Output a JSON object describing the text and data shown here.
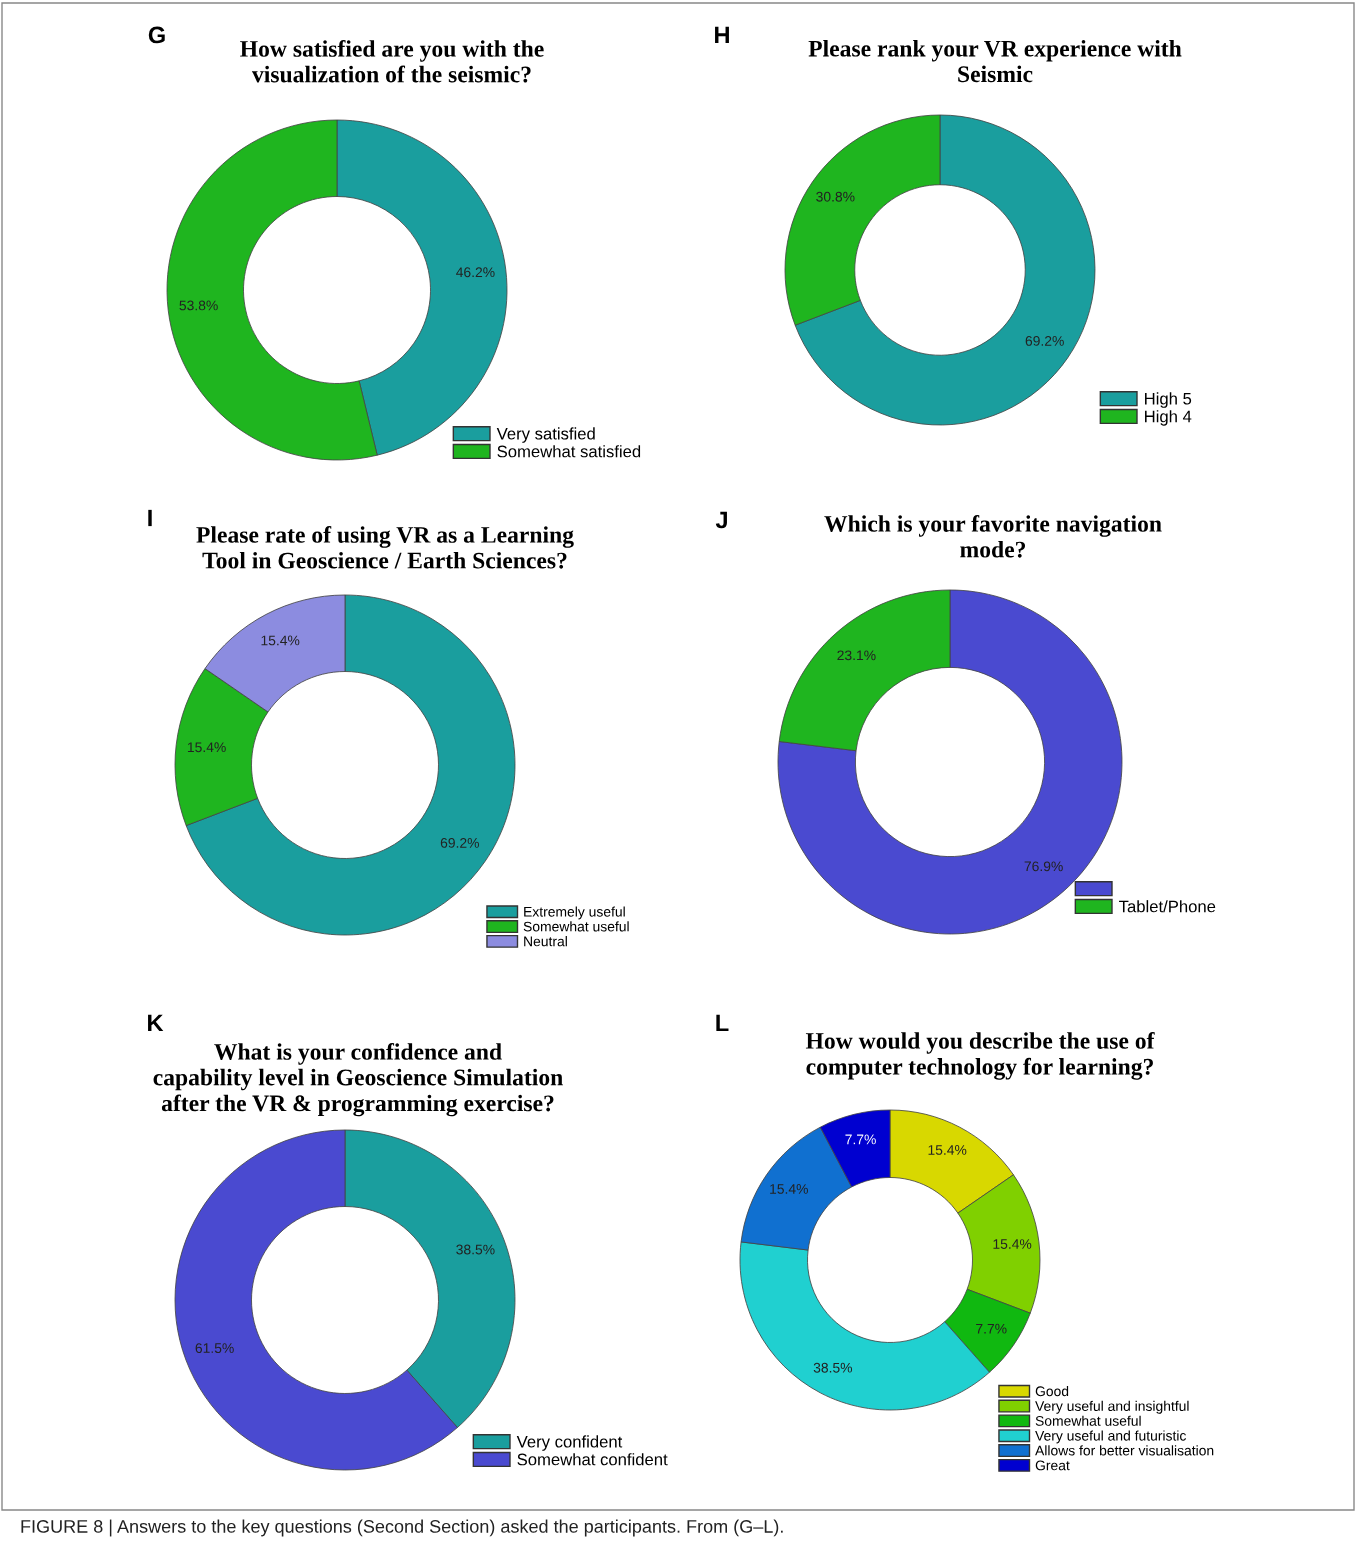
{
  "chart_data": [
    {
      "type": "donut",
      "title": "How satisfied are you with the\nvisualization of the seismic?",
      "annotations": [
        "G"
      ],
      "categories": [
        "Very satisfied",
        "Somewhat satisfied"
      ],
      "values": [
        46.2,
        53.8
      ],
      "value_labels": [
        "46.2%",
        "53.8%"
      ],
      "colors": [
        "#1a9e9e",
        "#1fb51f"
      ],
      "legend": "bottom right"
    },
    {
      "type": "donut",
      "title": "Please rank your VR experience with\nSeismic",
      "annotations": [
        "H"
      ],
      "categories": [
        "High 5",
        "High 4"
      ],
      "values": [
        69.2,
        30.8
      ],
      "value_labels": [
        "69.2%",
        "30.8%"
      ],
      "colors": [
        "#1a9e9e",
        "#1fb51f"
      ],
      "legend": "bottom right"
    },
    {
      "type": "donut",
      "title": "Please rate of using VR as a Learning\nTool in Geoscience / Earth Sciences?",
      "annotations": [
        "I"
      ],
      "categories": [
        "Extremely useful",
        "Somewhat useful",
        "Neutral"
      ],
      "values": [
        69.2,
        15.4,
        15.4
      ],
      "value_labels": [
        "69.2%",
        "15.4%",
        "15.4%"
      ],
      "colors": [
        "#1a9e9e",
        "#1fb51f",
        "#8c8ce0"
      ],
      "legend": "bottom right"
    },
    {
      "type": "donut",
      "title": "Which is your favorite navigation\nmode?",
      "annotations": [
        "J"
      ],
      "categories": [
        null,
        "Tablet/Phone"
      ],
      "values": [
        76.9,
        23.1
      ],
      "value_labels": [
        "76.9%",
        "23.1%"
      ],
      "colors": [
        "#4a4ad0",
        "#1fb51f"
      ],
      "legend": "bottom right"
    },
    {
      "type": "donut",
      "title": "What is your confidence and\ncapability level in Geoscience Simulation\nafter the VR & programming exercise?",
      "annotations": [
        "K"
      ],
      "categories": [
        "Very confident",
        "Somewhat confident"
      ],
      "values": [
        38.5,
        61.5
      ],
      "value_labels": [
        "38.5%",
        "61.5%"
      ],
      "colors": [
        "#1a9e9e",
        "#4a4ad0"
      ],
      "legend": "bottom right"
    },
    {
      "type": "donut",
      "title": "How would you describe the use of\ncomputer technology for learning?",
      "annotations": [
        "L",
        "FIGURE 8 | Answers to the key questions (Second Section) asked the participants. From (G–L)."
      ],
      "categories": [
        "Good",
        "Very useful and insightful",
        "Somewhat useful",
        "Very useful and futuristic",
        "Allows for better visualisation",
        "Great"
      ],
      "values": [
        15.4,
        15.4,
        7.7,
        38.5,
        15.4,
        7.7
      ],
      "value_labels": [
        "15.4%",
        "15.4%",
        "7.7%",
        "38.5%",
        "15.4%",
        "7.7%"
      ],
      "colors": [
        "#d8d800",
        "#80d000",
        "#10b810",
        "#20d0d0",
        "#1070d0",
        "#0000d0"
      ],
      "legend": "bottom right"
    }
  ]
}
